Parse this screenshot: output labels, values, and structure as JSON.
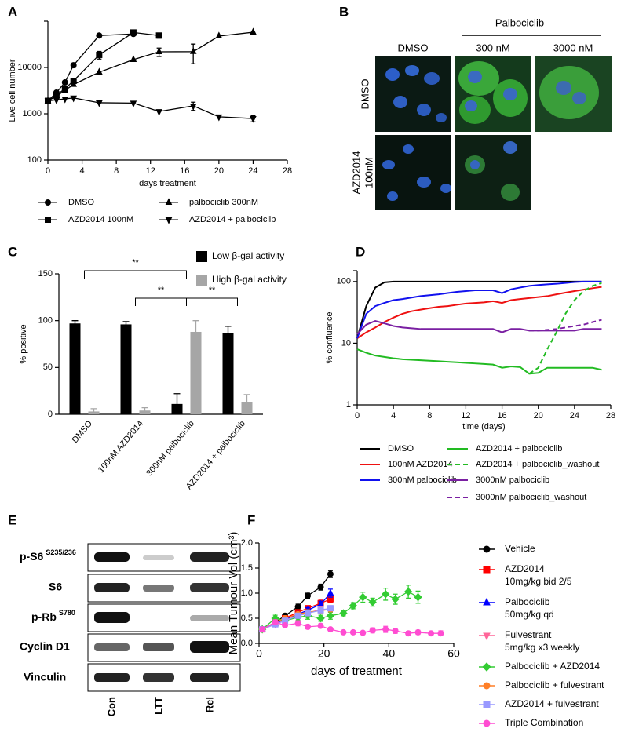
{
  "chart_data": [
    {
      "panel": "A",
      "type": "line",
      "log_y": true,
      "x_label": "days treatment",
      "y_label": "Live cell number",
      "xlim": [
        0,
        28
      ],
      "xticks": [
        0,
        4,
        8,
        12,
        16,
        20,
        24,
        28
      ],
      "ylim": [
        100,
        100000
      ],
      "yticks": [
        100,
        1000,
        10000
      ],
      "legend_position": "bottom",
      "series": [
        {
          "name": "DMSO",
          "color": "#000000",
          "marker": "circle",
          "x": [
            0,
            1,
            2,
            3,
            6,
            10
          ],
          "values": [
            1900,
            2870,
            4770,
            11200,
            49000,
            53000
          ],
          "errors": [
            null,
            null,
            null,
            1200,
            null,
            null
          ]
        },
        {
          "name": "palbociclib 300nM",
          "color": "#000000",
          "marker": "triangle-up",
          "x": [
            0,
            1,
            2,
            3,
            6,
            10,
            13,
            17,
            20,
            24
          ],
          "values": [
            1900,
            2400,
            3200,
            4300,
            7900,
            14800,
            21800,
            22000,
            47600,
            57800
          ],
          "errors": [
            null,
            null,
            null,
            null,
            null,
            null,
            4500,
            10000,
            null,
            null
          ]
        },
        {
          "name": "AZD2014 100nM",
          "color": "#000000",
          "marker": "square",
          "x": [
            0,
            1,
            2,
            3,
            6,
            10,
            13
          ],
          "values": [
            1900,
            2500,
            3500,
            5150,
            18700,
            57000,
            49000
          ],
          "errors": [
            null,
            null,
            null,
            null,
            3500,
            6000,
            6000
          ]
        },
        {
          "name": "AZD2014 + palbociclib",
          "color": "#000000",
          "marker": "triangle-down",
          "x": [
            0,
            1,
            2,
            3,
            6,
            10,
            13,
            17,
            20,
            24
          ],
          "values": [
            1900,
            2000,
            2100,
            2200,
            1730,
            1700,
            1120,
            1480,
            860,
            790
          ],
          "errors": [
            null,
            null,
            null,
            null,
            null,
            null,
            null,
            300,
            null,
            120
          ]
        }
      ]
    },
    {
      "panel": "C",
      "type": "bar",
      "y_label": "% positive",
      "categories": [
        "DMSO",
        "100nM AZD2014",
        "300nM palbociclib",
        "AZD2014 + palbociclib"
      ],
      "ylim": [
        0,
        150
      ],
      "yticks": [
        0,
        50,
        100,
        150
      ],
      "legend_position": "top right",
      "series": [
        {
          "name": "Low β-gal activity",
          "color": "#000000",
          "values": [
            97,
            96,
            11,
            87
          ],
          "errors": [
            3,
            3,
            11,
            7
          ]
        },
        {
          "name": "High β-gal activity",
          "color": "#a6a6a6",
          "values": [
            3,
            4,
            88,
            13
          ],
          "errors": [
            3,
            3,
            12,
            8
          ]
        }
      ],
      "annotations": [
        {
          "text": "**",
          "from": "DMSO",
          "to": "300nM palbociclib"
        },
        {
          "text": "**",
          "from": "100nM AZD2014",
          "to": "300nM palbociclib"
        },
        {
          "text": "**",
          "from": "300nM palbociclib",
          "to": "AZD2014 + palbociclib"
        }
      ]
    },
    {
      "panel": "D",
      "type": "line",
      "log_y": true,
      "x_label": "time (days)",
      "y_label": "% confluence",
      "xlim": [
        0,
        28
      ],
      "xticks": [
        0,
        4,
        8,
        12,
        16,
        20,
        24,
        28
      ],
      "ylim": [
        1,
        150
      ],
      "yticks": [
        1,
        10,
        100
      ],
      "legend_position": "bottom",
      "x": [
        0,
        1,
        2,
        3,
        4,
        5,
        6,
        7,
        8,
        9,
        10,
        11,
        12,
        13,
        14,
        15,
        16,
        17,
        18,
        19,
        20,
        21,
        22,
        23,
        24,
        25,
        26,
        27
      ],
      "series": [
        {
          "name": "DMSO",
          "color": "#000000",
          "values": [
            12,
            40,
            80,
            97,
            100,
            100,
            100,
            100,
            100,
            100,
            100,
            100,
            100,
            100,
            100,
            100,
            100,
            100,
            100,
            100,
            100,
            100,
            100,
            100,
            100,
            100,
            100,
            100
          ]
        },
        {
          "name": "AZD2014 + palbociclib",
          "color": "#22bb22",
          "values": [
            8,
            7,
            6.3,
            6,
            5.7,
            5.5,
            5.4,
            5.3,
            5.2,
            5.1,
            5,
            4.9,
            4.8,
            4.7,
            4.6,
            4.5,
            4,
            4.2,
            4.1,
            3.2,
            3.3,
            4,
            4,
            4,
            4,
            4,
            4,
            3.7
          ]
        },
        {
          "name": "100nM AZD2014",
          "color": "#ee1111",
          "values": [
            12,
            15,
            18,
            22,
            26,
            30,
            33,
            35,
            37,
            39,
            40,
            42,
            44,
            45,
            46,
            48,
            45,
            50,
            52,
            54,
            56,
            58,
            62,
            66,
            70,
            74,
            78,
            82
          ]
        },
        {
          "name": "AZD2014 + palbociclib_washout",
          "color": "#22bb22",
          "dashed": true,
          "values": [
            null,
            null,
            null,
            null,
            null,
            null,
            null,
            null,
            null,
            null,
            null,
            null,
            null,
            null,
            null,
            null,
            null,
            null,
            null,
            3.2,
            4,
            8,
            15,
            30,
            50,
            70,
            85,
            95
          ]
        },
        {
          "name": "300nM palbociclib",
          "color": "#1111ee",
          "values": [
            12,
            30,
            40,
            45,
            50,
            52,
            55,
            58,
            60,
            62,
            65,
            68,
            70,
            72,
            72,
            72,
            65,
            75,
            80,
            85,
            88,
            90,
            92,
            95,
            98,
            100,
            100,
            100
          ]
        },
        {
          "name": "3000nM palbociclib",
          "color": "#7a1fa2",
          "values": [
            14,
            20,
            23,
            21,
            19,
            18,
            17.5,
            17,
            17,
            17,
            17,
            17,
            17,
            17,
            17,
            17,
            15,
            17,
            17,
            16,
            16,
            16,
            16,
            16,
            16,
            17,
            17,
            17
          ]
        },
        {
          "name": "3000nM palbociclib_washout",
          "color": "#7a1fa2",
          "dashed": true,
          "values": [
            null,
            null,
            null,
            null,
            null,
            null,
            null,
            null,
            null,
            null,
            null,
            null,
            null,
            null,
            null,
            null,
            null,
            null,
            null,
            16,
            16,
            16.5,
            17,
            18,
            19,
            20,
            22,
            24
          ]
        }
      ]
    },
    {
      "panel": "F",
      "type": "line",
      "x_label": "days of treatment",
      "y_label": "Mean Tumour Vol (cm³)",
      "xlim": [
        0,
        60
      ],
      "xticks": [
        0,
        20,
        40,
        60
      ],
      "ylim": [
        0,
        2
      ],
      "yticks": [
        {
          "value": 0,
          "label": "0.0"
        },
        {
          "value": 0.5,
          "label": "0.5"
        },
        {
          "value": 1,
          "label": "1.0"
        },
        {
          "value": 1.5,
          "label": "1.5"
        },
        {
          "value": 2,
          "label": "2.0"
        }
      ],
      "legend_position": "right",
      "series": [
        {
          "name": "Vehicle",
          "color": "#000000",
          "marker": "circle",
          "x": [
            1,
            5,
            8,
            12,
            15,
            19,
            22
          ],
          "values": [
            0.28,
            0.42,
            0.55,
            0.73,
            0.95,
            1.12,
            1.38
          ],
          "errors": [
            0.02,
            0.03,
            0.04,
            0.05,
            0.05,
            0.06,
            0.07
          ]
        },
        {
          "name": "AZD2014",
          "dose": "10mg/kg bid 2/5",
          "color": "#ff0000",
          "marker": "square",
          "x": [
            1,
            5,
            8,
            12,
            15,
            19,
            22
          ],
          "values": [
            0.28,
            0.4,
            0.5,
            0.62,
            0.7,
            0.8,
            0.88
          ],
          "errors": [
            0.02,
            0.03,
            0.04,
            0.05,
            0.05,
            0.06,
            0.07
          ]
        },
        {
          "name": "Palbociclib",
          "dose": "50mg/kg qd",
          "color": "#0000ff",
          "marker": "triangle-up",
          "x": [
            1,
            5,
            8,
            12,
            15,
            19,
            22
          ],
          "values": [
            0.28,
            0.4,
            0.48,
            0.58,
            0.66,
            0.78,
            1.0
          ],
          "errors": [
            0.02,
            0.03,
            0.04,
            0.04,
            0.05,
            0.06,
            0.08
          ]
        },
        {
          "name": "Fulvestrant",
          "dose": "5mg/kg x3 weekly",
          "color": "#ff6699",
          "marker": "triangle-down",
          "x": [
            1,
            5,
            8,
            12,
            15,
            19,
            22
          ],
          "values": [
            0.28,
            0.38,
            0.46,
            0.55,
            0.6,
            0.68,
            0.68
          ],
          "errors": [
            0.02,
            0.03,
            0.03,
            0.04,
            0.04,
            0.05,
            0.05
          ]
        },
        {
          "name": "Palbociclib + AZD2014",
          "color": "#33cc33",
          "marker": "diamond",
          "x": [
            1,
            5,
            8,
            12,
            15,
            19,
            22,
            26,
            29,
            32,
            35,
            39,
            42,
            46,
            49
          ],
          "values": [
            0.28,
            0.5,
            0.45,
            0.52,
            0.55,
            0.5,
            0.55,
            0.6,
            0.75,
            0.92,
            0.82,
            0.98,
            0.88,
            1.03,
            0.92
          ],
          "errors": [
            0.02,
            0.06,
            0.05,
            0.06,
            0.07,
            0.06,
            0.07,
            0.05,
            0.06,
            0.1,
            0.08,
            0.12,
            0.1,
            0.13,
            0.12
          ]
        },
        {
          "name": "Palbociclib + fulvestrant",
          "color": "#ff7f27",
          "marker": "circle",
          "x": [
            1,
            5,
            8,
            12,
            15,
            19,
            22
          ],
          "values": [
            0.28,
            0.42,
            0.5,
            0.58,
            0.62,
            0.65,
            0.68
          ],
          "errors": [
            0.02,
            0.03,
            0.04,
            0.04,
            0.05,
            0.05,
            0.05
          ]
        },
        {
          "name": "AZD2014 + fulvestrant",
          "color": "#9999ff",
          "marker": "square",
          "x": [
            1,
            5,
            8,
            12,
            15,
            19,
            22
          ],
          "values": [
            0.28,
            0.38,
            0.45,
            0.55,
            0.6,
            0.66,
            0.7
          ],
          "errors": [
            0.02,
            0.03,
            0.03,
            0.04,
            0.04,
            0.05,
            0.05
          ]
        },
        {
          "name": "Triple Combination",
          "color": "#ff4dd2",
          "marker": "circle",
          "x": [
            1,
            5,
            8,
            12,
            15,
            19,
            22,
            26,
            29,
            32,
            35,
            39,
            42,
            46,
            49,
            53,
            56
          ],
          "values": [
            0.28,
            0.42,
            0.36,
            0.4,
            0.33,
            0.35,
            0.28,
            0.22,
            0.22,
            0.21,
            0.26,
            0.28,
            0.25,
            0.2,
            0.22,
            0.2,
            0.2
          ],
          "errors": [
            0.03,
            0.05,
            0.04,
            0.05,
            0.04,
            0.04,
            0.03,
            0.03,
            0.03,
            0.03,
            0.05,
            0.06,
            0.05,
            0.04,
            0.04,
            0.04,
            0.05
          ]
        }
      ]
    }
  ],
  "panel_b": {
    "panel": "B",
    "group_header": "Palbociclib",
    "column_headers": [
      "DMSO",
      "300 nM",
      "3000 nM"
    ],
    "row_labels": [
      {
        "lines": [
          "DMSO"
        ]
      },
      {
        "lines": [
          "AZD2014",
          "100nM"
        ]
      }
    ]
  },
  "panel_e": {
    "panel": "E",
    "rows": [
      {
        "label": "p-S6",
        "superscript": "S235/236"
      },
      {
        "label": "S6"
      },
      {
        "label": "p-Rb",
        "superscript": "S780"
      },
      {
        "label": "Cyclin D1"
      },
      {
        "label": "Vinculin"
      }
    ],
    "columns": [
      "Con",
      "LTT",
      "Rel"
    ]
  }
}
